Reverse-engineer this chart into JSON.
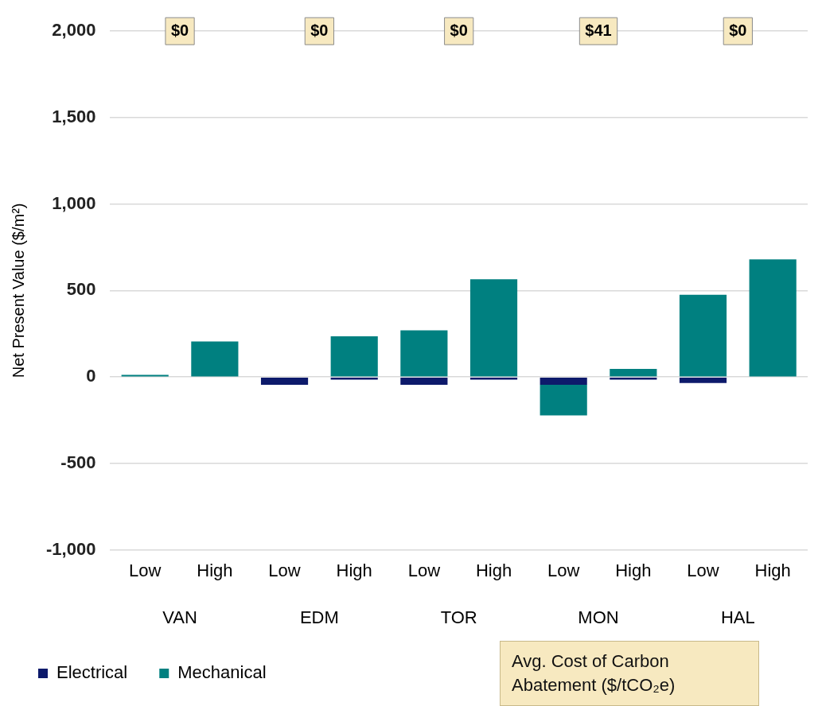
{
  "chart_data": {
    "type": "bar",
    "stacked": true,
    "categories": [
      "Low",
      "High",
      "Low",
      "High",
      "Low",
      "High",
      "Low",
      "High",
      "Low",
      "High"
    ],
    "series": [
      {
        "name": "Electrical",
        "color": "#0d1a6b",
        "values": [
          null,
          null,
          -45,
          -15,
          -45,
          -15,
          -45,
          -15,
          -35,
          null
        ]
      },
      {
        "name": "Mechanical",
        "color": "#008080",
        "values": [
          12,
          205,
          0,
          235,
          270,
          565,
          -177,
          47,
          475,
          680
        ]
      }
    ],
    "ylabel": "Net Present Value ($/m²)",
    "ylim": [
      -1000,
      2000
    ],
    "yticks": [
      {
        "value": -1000,
        "label": "-1,000"
      },
      -500,
      0,
      500,
      {
        "value": 1000,
        "label": "1,000"
      },
      {
        "value": 1500,
        "label": "1,500"
      },
      {
        "value": 2000,
        "label": "2,000"
      }
    ],
    "grid": "y",
    "legend": "bottom",
    "annotations": [
      "VAN",
      "EDM",
      "TOR",
      "MON",
      "HAL",
      "$0",
      "$0",
      "$0",
      "$41",
      "$0",
      "Avg. Cost of Carbon Abatement ($/tCO₂e)"
    ]
  }
}
